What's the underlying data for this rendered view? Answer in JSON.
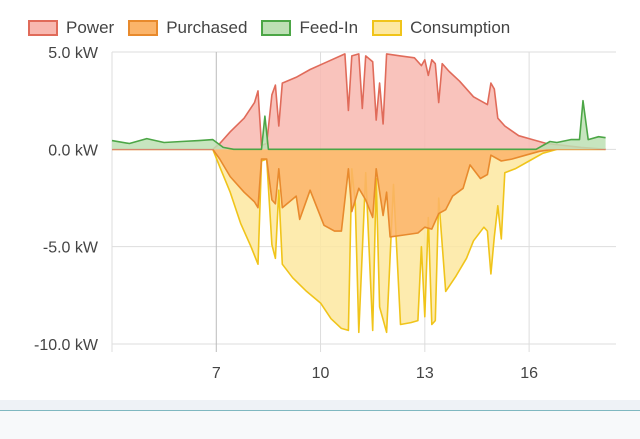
{
  "chart_data": {
    "type": "area",
    "legend_position": "top-left",
    "grid": true,
    "xlabel": "",
    "ylabel": "",
    "xlim": [
      4,
      18.5
    ],
    "ylim": [
      -10,
      5
    ],
    "x_ticks": [
      7,
      10,
      13,
      16
    ],
    "x_tick_labels": [
      "7",
      "10",
      "13",
      "16"
    ],
    "y_ticks": [
      5,
      0,
      -5,
      -10
    ],
    "y_tick_labels": [
      "5.0 kW",
      "0.0 kW",
      "-5.0 kW",
      "-10.0 kW"
    ],
    "series": [
      {
        "name": "Power",
        "stroke": "#e06b5a",
        "fill": "#f8b8b0",
        "points": [
          [
            4,
            0
          ],
          [
            6.9,
            0
          ],
          [
            7.1,
            0.3
          ],
          [
            7.4,
            0.9
          ],
          [
            7.8,
            1.6
          ],
          [
            8.1,
            2.4
          ],
          [
            8.2,
            3.0
          ],
          [
            8.3,
            0.2
          ],
          [
            8.45,
            0.3
          ],
          [
            8.6,
            2.8
          ],
          [
            8.7,
            3.3
          ],
          [
            8.8,
            1.2
          ],
          [
            8.9,
            3.4
          ],
          [
            9.3,
            3.7
          ],
          [
            9.7,
            4.1
          ],
          [
            10.2,
            4.5
          ],
          [
            10.7,
            4.9
          ],
          [
            10.8,
            2.0
          ],
          [
            10.9,
            4.8
          ],
          [
            11.1,
            4.9
          ],
          [
            11.2,
            2.1
          ],
          [
            11.3,
            4.8
          ],
          [
            11.5,
            4.5
          ],
          [
            11.6,
            1.5
          ],
          [
            11.7,
            3.4
          ],
          [
            11.8,
            1.3
          ],
          [
            11.9,
            4.9
          ],
          [
            12.3,
            4.8
          ],
          [
            12.7,
            4.7
          ],
          [
            12.9,
            4.3
          ],
          [
            13.0,
            4.6
          ],
          [
            13.1,
            3.8
          ],
          [
            13.2,
            4.6
          ],
          [
            13.3,
            4.4
          ],
          [
            13.4,
            2.4
          ],
          [
            13.5,
            4.4
          ],
          [
            13.7,
            4.0
          ],
          [
            14.0,
            3.5
          ],
          [
            14.4,
            2.7
          ],
          [
            14.8,
            2.3
          ],
          [
            14.9,
            3.4
          ],
          [
            15.0,
            3.1
          ],
          [
            15.1,
            1.6
          ],
          [
            15.3,
            1.2
          ],
          [
            15.7,
            0.7
          ],
          [
            16.1,
            0.5
          ],
          [
            16.5,
            0.3
          ],
          [
            17.0,
            0.2
          ],
          [
            17.5,
            0.1
          ],
          [
            18.2,
            0
          ]
        ]
      },
      {
        "name": "Purchased",
        "stroke": "#e88a2d",
        "fill": "#fbb46a",
        "points": [
          [
            4,
            0
          ],
          [
            6.9,
            0
          ],
          [
            7.1,
            -0.5
          ],
          [
            7.4,
            -1.4
          ],
          [
            7.8,
            -2.2
          ],
          [
            8.1,
            -2.7
          ],
          [
            8.2,
            -3.0
          ],
          [
            8.3,
            -0.5
          ],
          [
            8.45,
            -0.5
          ],
          [
            8.6,
            -2.6
          ],
          [
            8.7,
            -2.8
          ],
          [
            8.8,
            -1.0
          ],
          [
            8.9,
            -3.0
          ],
          [
            9.3,
            -2.4
          ],
          [
            9.4,
            -3.6
          ],
          [
            9.7,
            -2.1
          ],
          [
            10.1,
            -3.9
          ],
          [
            10.4,
            -4.2
          ],
          [
            10.6,
            -4.2
          ],
          [
            10.8,
            -1.0
          ],
          [
            10.9,
            -3.2
          ],
          [
            11.1,
            -2.0
          ],
          [
            11.3,
            -2.6
          ],
          [
            11.5,
            -3.5
          ],
          [
            11.6,
            -1.0
          ],
          [
            11.8,
            -3.4
          ],
          [
            11.9,
            -2.2
          ],
          [
            12.0,
            -4.5
          ],
          [
            12.4,
            -4.4
          ],
          [
            12.8,
            -4.3
          ],
          [
            13.0,
            -4.0
          ],
          [
            13.2,
            -4.1
          ],
          [
            13.4,
            -3.3
          ],
          [
            13.6,
            -3.1
          ],
          [
            13.8,
            -2.4
          ],
          [
            14.1,
            -2.0
          ],
          [
            14.3,
            -0.8
          ],
          [
            14.6,
            -1.5
          ],
          [
            14.8,
            -1.3
          ],
          [
            14.9,
            -0.3
          ],
          [
            15.2,
            -0.6
          ],
          [
            15.5,
            -0.5
          ],
          [
            15.9,
            -0.3
          ],
          [
            16.3,
            -0.1
          ],
          [
            16.7,
            0
          ],
          [
            18.2,
            0
          ]
        ]
      },
      {
        "name": "Feed-In",
        "stroke": "#4ca646",
        "fill": "#bde0b4",
        "points": [
          [
            4,
            0.45
          ],
          [
            4.5,
            0.3
          ],
          [
            5.0,
            0.55
          ],
          [
            5.5,
            0.35
          ],
          [
            6.0,
            0.4
          ],
          [
            6.5,
            0.45
          ],
          [
            6.9,
            0.5
          ],
          [
            7.2,
            0.1
          ],
          [
            7.5,
            0
          ],
          [
            8.3,
            0
          ],
          [
            8.4,
            1.7
          ],
          [
            8.5,
            0
          ],
          [
            16.2,
            0
          ],
          [
            16.6,
            0.4
          ],
          [
            16.8,
            0.35
          ],
          [
            17.2,
            0.5
          ],
          [
            17.45,
            0.5
          ],
          [
            17.55,
            2.5
          ],
          [
            17.7,
            0.5
          ],
          [
            18.0,
            0.65
          ],
          [
            18.2,
            0.6
          ]
        ]
      },
      {
        "name": "Consumption",
        "stroke": "#f0c41a",
        "fill": "#fde8a0",
        "points": [
          [
            4,
            0
          ],
          [
            6.9,
            0
          ],
          [
            7.1,
            -0.9
          ],
          [
            7.4,
            -2.2
          ],
          [
            7.7,
            -3.8
          ],
          [
            8.0,
            -5.0
          ],
          [
            8.2,
            -5.9
          ],
          [
            8.3,
            -0.6
          ],
          [
            8.45,
            -0.5
          ],
          [
            8.6,
            -4.9
          ],
          [
            8.7,
            -5.6
          ],
          [
            8.8,
            -2.1
          ],
          [
            8.9,
            -5.9
          ],
          [
            9.2,
            -6.6
          ],
          [
            9.6,
            -7.3
          ],
          [
            10.0,
            -7.9
          ],
          [
            10.3,
            -8.7
          ],
          [
            10.6,
            -9.2
          ],
          [
            10.8,
            -9.3
          ],
          [
            10.9,
            -1.0
          ],
          [
            11.0,
            -2.8
          ],
          [
            11.1,
            -9.4
          ],
          [
            11.3,
            -1.2
          ],
          [
            11.5,
            -9.3
          ],
          [
            11.6,
            -1.5
          ],
          [
            11.7,
            -8.1
          ],
          [
            11.9,
            -9.4
          ],
          [
            12.1,
            -1.8
          ],
          [
            12.3,
            -9.0
          ],
          [
            12.6,
            -8.9
          ],
          [
            12.8,
            -8.8
          ],
          [
            12.9,
            -5.0
          ],
          [
            13.0,
            -8.6
          ],
          [
            13.1,
            -3.5
          ],
          [
            13.2,
            -9.0
          ],
          [
            13.3,
            -8.8
          ],
          [
            13.4,
            -2.5
          ],
          [
            13.6,
            -7.3
          ],
          [
            13.9,
            -6.5
          ],
          [
            14.2,
            -5.6
          ],
          [
            14.4,
            -4.7
          ],
          [
            14.7,
            -4.0
          ],
          [
            14.8,
            -4.2
          ],
          [
            14.9,
            -6.4
          ],
          [
            15.0,
            -4.5
          ],
          [
            15.1,
            -2.9
          ],
          [
            15.2,
            -4.6
          ],
          [
            15.3,
            -1.2
          ],
          [
            15.6,
            -1.0
          ],
          [
            16.0,
            -0.6
          ],
          [
            16.4,
            -0.2
          ],
          [
            16.8,
            0
          ],
          [
            18.2,
            0
          ]
        ]
      }
    ]
  }
}
